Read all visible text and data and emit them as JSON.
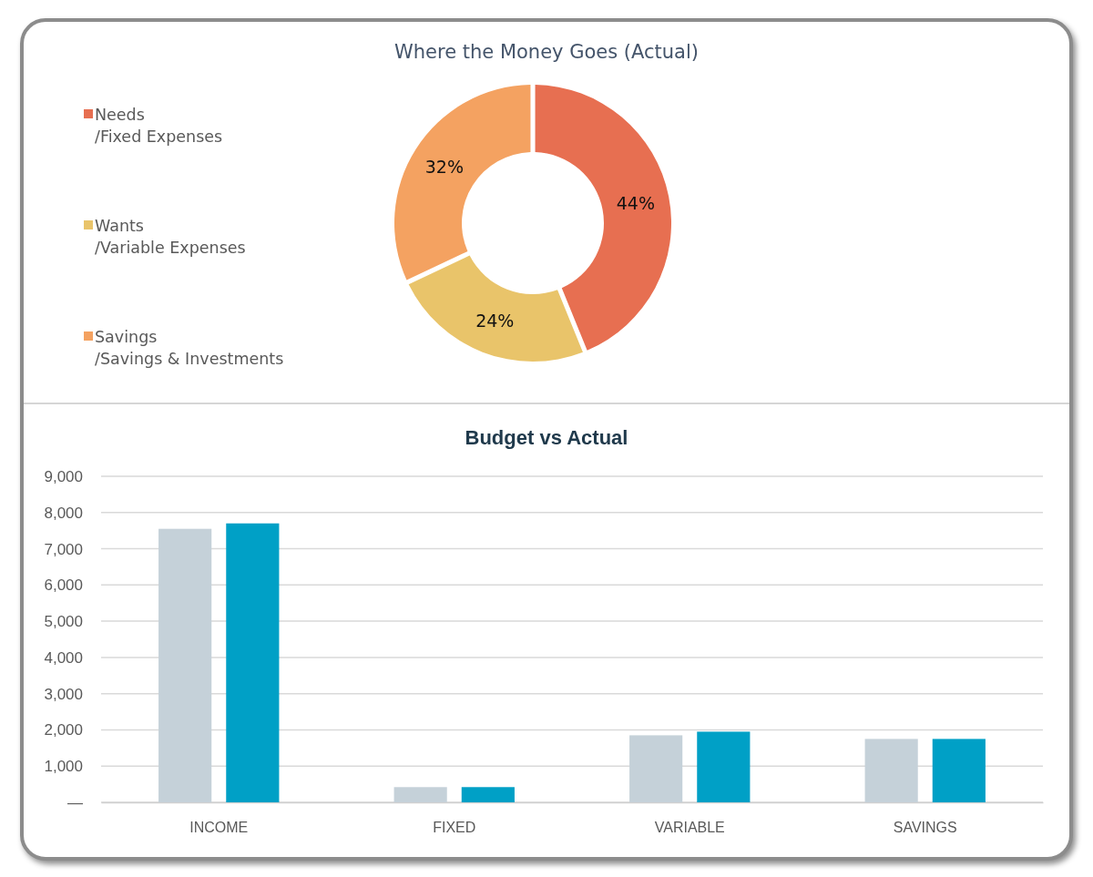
{
  "chart_data": [
    {
      "type": "donut",
      "title": "Where the Money Goes (Actual)",
      "categories": [
        "Needs\n/Fixed Expenses",
        "Wants\n/Variable Expenses",
        "Savings\n/Savings & Investments"
      ],
      "values": [
        44,
        24,
        32
      ],
      "colors": [
        "#e76f51",
        "#e9c46a",
        "#f4a261"
      ],
      "value_labels": [
        "44%",
        "24%",
        "32%"
      ],
      "legend": "left"
    },
    {
      "type": "bar",
      "title": "Budget vs Actual",
      "categories": [
        "INCOME",
        "FIXED",
        "VARIABLE",
        "SAVINGS"
      ],
      "series": [
        {
          "color": "#c5d1d9",
          "values": [
            7550,
            420,
            1850,
            1750
          ]
        },
        {
          "color": "#00a0c6",
          "values": [
            7700,
            420,
            1950,
            1750
          ]
        }
      ],
      "ylim": [
        0,
        9000
      ],
      "yticks": [
        {
          "value": 0,
          "label": "—"
        },
        {
          "value": 1000,
          "label": "1,000"
        },
        {
          "value": 2000,
          "label": "2,000"
        },
        {
          "value": 3000,
          "label": "3,000"
        },
        {
          "value": 4000,
          "label": "4,000"
        },
        {
          "value": 5000,
          "label": "5,000"
        },
        {
          "value": 6000,
          "label": "6,000"
        },
        {
          "value": 7000,
          "label": "7,000"
        },
        {
          "value": 8000,
          "label": "8,000"
        },
        {
          "value": 9000,
          "label": "9,000"
        }
      ],
      "grid": "y"
    }
  ]
}
